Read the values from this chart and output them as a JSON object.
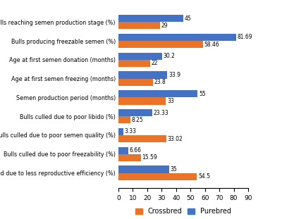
{
  "categories": [
    "Bulls reaching semen production stage (%)",
    "Bulls producing freezable semen (%)",
    "Age at first semen donation (months)",
    "Age at first semen freezing (months)",
    "Semen production period (months)",
    "Bulls culled due to poor libido (%)",
    "Bulls culled due to poor semen quality (%)",
    "Bulls culled due to poor freezability (%)",
    "Bulls culled due to less reproductive efficiency (%)"
  ],
  "crossbred": [
    29,
    58.46,
    22,
    23.8,
    33,
    8.25,
    33.02,
    15.59,
    54.5
  ],
  "purebred": [
    45,
    81.69,
    30.2,
    33.9,
    55,
    23.33,
    3.33,
    6.66,
    35
  ],
  "crossbred_color": "#E8742A",
  "purebred_color": "#4472C4",
  "xlim": [
    0,
    90
  ],
  "xticks": [
    0,
    10,
    20,
    30,
    40,
    50,
    60,
    70,
    80,
    90
  ],
  "bar_height": 0.38,
  "legend_labels": [
    "Crossbred",
    "Purebred"
  ],
  "fontsize_labels": 5.8,
  "fontsize_values": 5.5,
  "fontsize_ticks": 6.5,
  "fontsize_legend": 7
}
